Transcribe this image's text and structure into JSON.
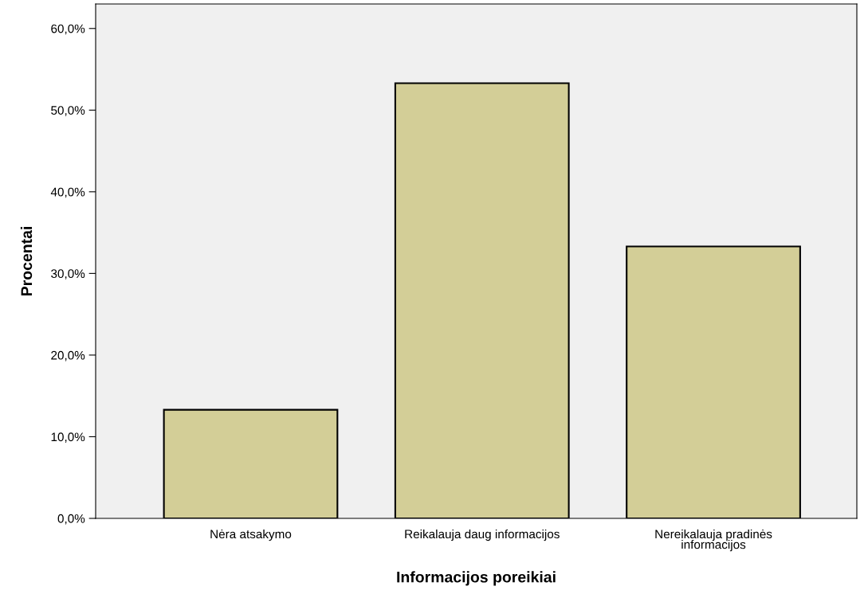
{
  "chart_data": {
    "type": "bar",
    "xlabel": "Informacijos poreikiai",
    "ylabel": "Procentai",
    "categories": [
      "Nėra atsakymo",
      "Reikalauja daug informacijos",
      "Nereikalauja pradinės\ninformacijos"
    ],
    "values": [
      13.3,
      53.3,
      33.3
    ],
    "color": "#d3ce97",
    "ylim": [
      0,
      63
    ],
    "yticks": [
      {
        "value": 0,
        "label": "0,0%"
      },
      {
        "value": 10,
        "label": "10,0%"
      },
      {
        "value": 20,
        "label": "20,0%"
      },
      {
        "value": 30,
        "label": "30,0%"
      },
      {
        "value": 40,
        "label": "40,0%"
      },
      {
        "value": 50,
        "label": "50,0%"
      },
      {
        "value": 60,
        "label": "60,0%"
      }
    ],
    "grid": false,
    "legend": false
  }
}
